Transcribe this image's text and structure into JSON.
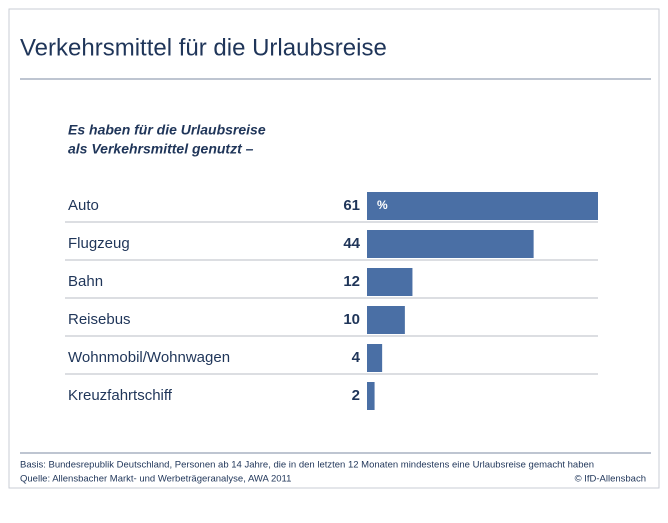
{
  "chart_data": {
    "type": "barh",
    "title": "Verkehrsmittel für die Urlaubsreise",
    "subtitle": [
      "Es haben für die Urlaubsreise",
      "als Verkehrsmittel genutzt –"
    ],
    "categories": [
      "Auto",
      "Flugzeug",
      "Bahn",
      "Reisebus",
      "Wohnmobil/Wohnwagen",
      "Kreuzfahrtschiff"
    ],
    "values": [
      61,
      44,
      12,
      10,
      4,
      2
    ],
    "unit": "%",
    "color": "#4a6fa5",
    "notes": [
      "Basis: Bundesrepublik Deutschland, Personen ab 14 Jahre, die in den letzten 12 Monaten mindestens eine Urlaubsreise gemacht haben",
      "Quelle: Allensbacher Markt- und Werbeträgeranalyse, AWA 2011"
    ],
    "credit": "© IfD-Allensbach"
  }
}
